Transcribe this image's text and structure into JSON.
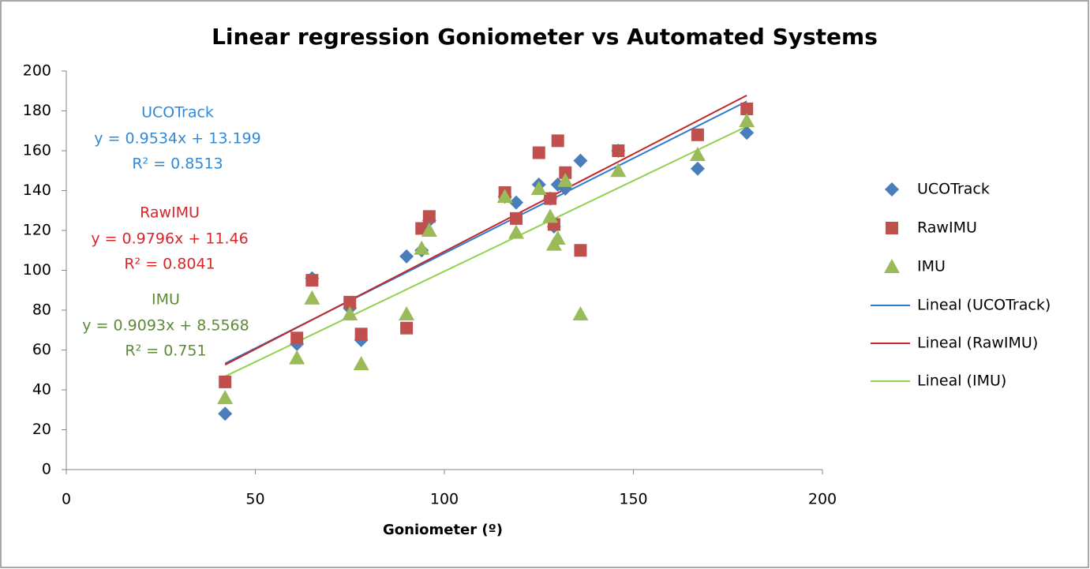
{
  "chart_data": {
    "type": "scatter",
    "title": "Linear regression Goniometer vs Automated Systems",
    "x_label": "Goniometer (º)",
    "xlim": [
      0,
      200
    ],
    "xticks": [
      0,
      50,
      100,
      150,
      200
    ],
    "ylim": [
      0,
      200
    ],
    "yticks": [
      0,
      20,
      40,
      60,
      80,
      100,
      120,
      140,
      160,
      180,
      200
    ],
    "grid": false,
    "legend": "right",
    "series": [
      {
        "name": "UCOTrack",
        "color": "#4a7ebb",
        "marker": "diamond",
        "label_color": "#2f8ad8",
        "x": [
          42,
          61,
          65,
          75,
          78,
          90,
          94,
          96,
          116,
          119,
          125,
          128,
          129,
          130,
          132,
          136,
          146,
          167,
          180
        ],
        "values": [
          28,
          63,
          96,
          81,
          65,
          107,
          110,
          125,
          137,
          134,
          143,
          136,
          122,
          143,
          141,
          155,
          160,
          151,
          169
        ],
        "trendline": {
          "name": "Lineal (UCOTrack)",
          "color": "#2e7bcf",
          "equation": "y = 0.9534x + 13.199",
          "r2": "R² = 0.8513",
          "slope": 0.9534,
          "intercept": 13.199
        }
      },
      {
        "name": "RawIMU",
        "color": "#c0504d",
        "marker": "square",
        "label_color": "#d9262b",
        "x": [
          42,
          61,
          65,
          75,
          78,
          90,
          94,
          96,
          116,
          119,
          125,
          128,
          129,
          130,
          132,
          136,
          146,
          167,
          180
        ],
        "values": [
          44,
          66,
          95,
          84,
          68,
          71,
          121,
          127,
          139,
          126,
          159,
          136,
          123,
          165,
          149,
          110,
          160,
          168,
          181
        ],
        "trendline": {
          "name": "Lineal (RawIMU)",
          "color": "#c0282d",
          "equation": "y = 0.9796x + 11.46",
          "r2": "R² = 0.8041",
          "slope": 0.9796,
          "intercept": 11.46
        }
      },
      {
        "name": "IMU",
        "color": "#9bbb59",
        "marker": "triangle",
        "label_color": "#5f8a35",
        "x": [
          42,
          61,
          65,
          75,
          78,
          90,
          94,
          96,
          116,
          119,
          125,
          128,
          129,
          130,
          132,
          136,
          146,
          167,
          180
        ],
        "values": [
          36,
          56,
          86,
          78,
          53,
          78,
          111,
          120,
          137,
          119,
          141,
          127,
          113,
          116,
          145,
          78,
          150,
          158,
          175
        ],
        "trendline": {
          "name": "Lineal (IMU)",
          "color": "#92d050",
          "equation": "y = 0.9093x + 8.5568",
          "r2": "R² = 0.751",
          "slope": 0.9093,
          "intercept": 8.5568
        }
      }
    ]
  }
}
